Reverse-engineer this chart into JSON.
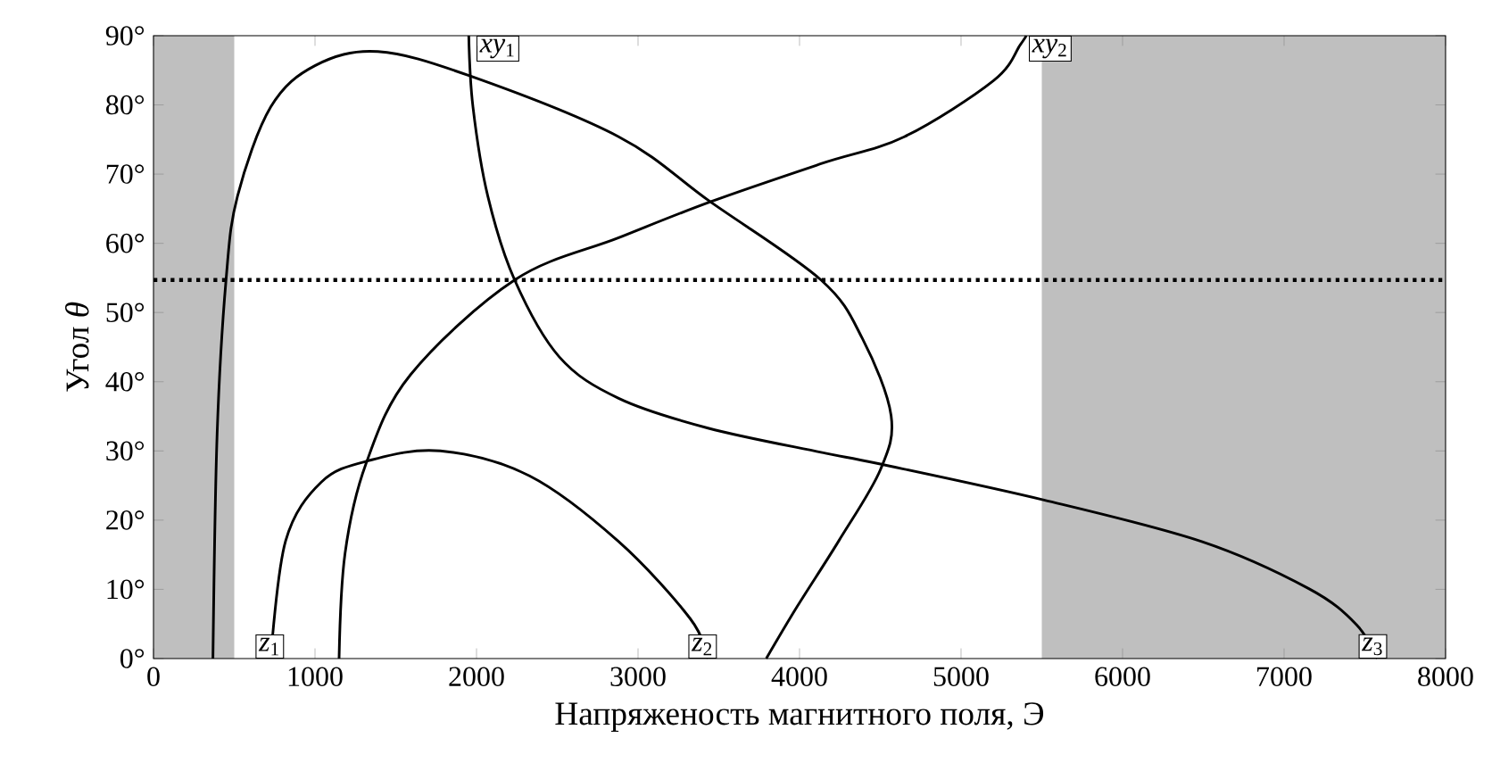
{
  "chart_data": {
    "type": "line",
    "xlabel": "Напряженость магнитного поля, Э",
    "ylabel": "Угол *θ*",
    "xlim": [
      0,
      8000
    ],
    "ylim": [
      0,
      90
    ],
    "xticks": [
      0,
      1000,
      2000,
      3000,
      4000,
      5000,
      6000,
      7000,
      8000
    ],
    "yticks": [
      {
        "value": 0,
        "label": "0°"
      },
      {
        "value": 10,
        "label": "10°"
      },
      {
        "value": 20,
        "label": "20°"
      },
      {
        "value": 30,
        "label": "30°"
      },
      {
        "value": 40,
        "label": "40°"
      },
      {
        "value": 50,
        "label": "50°"
      },
      {
        "value": 60,
        "label": "60°"
      },
      {
        "value": 70,
        "label": "70°"
      },
      {
        "value": 80,
        "label": "80°"
      },
      {
        "value": 90,
        "label": "90°"
      }
    ],
    "grid": false,
    "marker": "none",
    "line_style": "solid",
    "series": [
      {
        "color": "#000000",
        "x": [
          368,
          394,
          449,
          520,
          726,
          1002,
          1389,
          1957,
          2880,
          3448,
          4133,
          4390,
          4567,
          4501,
          4243,
          3985,
          3794
        ],
        "values": [
          0,
          32.5,
          54.7,
          66.8,
          79.7,
          85.7,
          87.7,
          84.2,
          75.4,
          66.0,
          54.7,
          46.2,
          35.1,
          27.3,
          17.0,
          7.5,
          0
        ]
      },
      {
        "color": "#000000",
        "x": [
          726,
          818,
          1039,
          1334,
          1776,
          2328,
          2880,
          3322,
          3433
        ],
        "values": [
          0,
          17.0,
          25.5,
          28.6,
          30.0,
          26.4,
          16.9,
          5.8,
          0
        ]
      },
      {
        "color": "#000000",
        "x": [
          1952,
          1978,
          2070,
          2236,
          2512,
          2880,
          3433,
          4133,
          4501,
          5514,
          6490,
          7153,
          7448,
          7577
        ],
        "values": [
          90,
          79.7,
          66.8,
          54.7,
          43.6,
          37.6,
          33.3,
          29.8,
          28.1,
          22.9,
          16.9,
          10.1,
          4.9,
          0
        ]
      },
      {
        "color": "#000000",
        "x": [
          1149,
          1186,
          1315,
          1591,
          2236,
          2880,
          3448,
          4133,
          4649,
          5201,
          5367,
          5403
        ],
        "values": [
          0,
          15.2,
          28.1,
          41.0,
          54.7,
          60.8,
          66.0,
          71.5,
          75.4,
          83.5,
          88.7,
          90
        ]
      }
    ],
    "bands": [
      {
        "axis": "x",
        "from": 0,
        "to": 500,
        "color": "#bfbfbf"
      },
      {
        "axis": "x",
        "from": 5500,
        "to": 8000,
        "color": "#bfbfbf"
      }
    ],
    "ref_lines": [
      {
        "axis": "y",
        "value": 54.7,
        "line_style": "dotted",
        "color": "#000000"
      }
    ],
    "annotations": [
      {
        "text": "*z*$_{1}$",
        "x": 720,
        "y": 0
      },
      {
        "text": "*xy*$_{1}$",
        "x": 2000,
        "y": 90
      },
      {
        "text": "*z*$_{2}$",
        "x": 3400,
        "y": 0
      },
      {
        "text": "*xy*$_{2}$",
        "x": 5420,
        "y": 90
      },
      {
        "text": "*z*$_{3}$",
        "x": 7550,
        "y": 0
      }
    ]
  }
}
